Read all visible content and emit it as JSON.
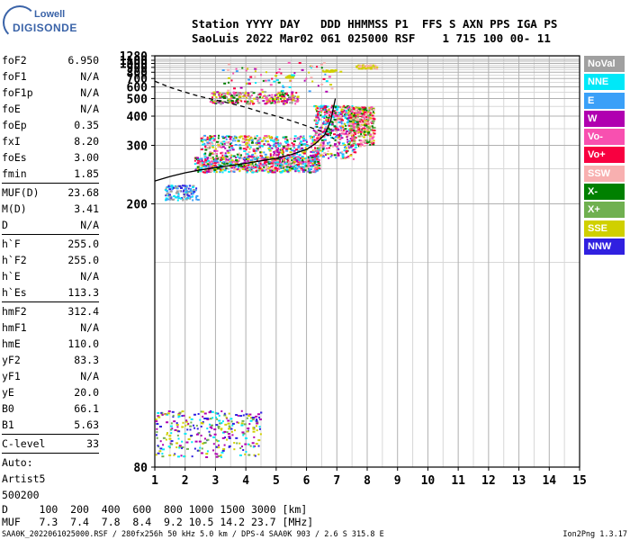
{
  "logo": {
    "line1": "Lowell",
    "line2": "DIGISONDE"
  },
  "header": {
    "row1": "Station YYYY DAY   DDD HHMMSS P1  FFS S AXN PPS IGA PS",
    "row2": "SaoLuis 2022 Mar02 061 025000 RSF    1 715 100 00- 11"
  },
  "params": [
    [
      {
        "k": "foF2",
        "v": "6.950"
      },
      {
        "k": "foF1",
        "v": "N/A"
      },
      {
        "k": "foF1p",
        "v": "N/A"
      },
      {
        "k": "foE",
        "v": "N/A"
      },
      {
        "k": "foEp",
        "v": "0.35"
      },
      {
        "k": "fxI",
        "v": "8.20"
      },
      {
        "k": "foEs",
        "v": "3.00"
      },
      {
        "k": "fmin",
        "v": "1.85"
      }
    ],
    [
      {
        "k": "MUF(D)",
        "v": "23.68"
      },
      {
        "k": "M(D)",
        "v": "3.41"
      },
      {
        "k": "D",
        "v": "N/A"
      }
    ],
    [
      {
        "k": "h`F",
        "v": "255.0"
      },
      {
        "k": "h`F2",
        "v": "255.0"
      },
      {
        "k": "h`E",
        "v": "N/A"
      },
      {
        "k": "h`Es",
        "v": "113.3"
      }
    ],
    [
      {
        "k": "hmF2",
        "v": "312.4"
      },
      {
        "k": "hmF1",
        "v": "N/A"
      },
      {
        "k": "hmE",
        "v": "110.0"
      },
      {
        "k": "yF2",
        "v": "83.3"
      },
      {
        "k": "yF1",
        "v": "N/A"
      },
      {
        "k": "yE",
        "v": "20.0"
      },
      {
        "k": "B0",
        "v": "66.1"
      },
      {
        "k": "B1",
        "v": "5.63"
      }
    ],
    [
      {
        "k": "C-level",
        "v": "33"
      }
    ],
    [
      {
        "k": "Auto:",
        "v": ""
      },
      {
        "k": "Artist5",
        "v": ""
      },
      {
        "k": "500200",
        "v": ""
      }
    ]
  ],
  "legend": [
    {
      "label": "NoVal",
      "color": "#a0a0a0"
    },
    {
      "label": "NNE",
      "color": "#00e8f8"
    },
    {
      "label": "E",
      "color": "#3aa0f8"
    },
    {
      "label": "W",
      "color": "#b000b0"
    },
    {
      "label": "Vo-",
      "color": "#f850b0"
    },
    {
      "label": "Vo+",
      "color": "#f80040"
    },
    {
      "label": "SSW",
      "color": "#f8b0b0"
    },
    {
      "label": "X-",
      "color": "#008000"
    },
    {
      "label": "X+",
      "color": "#70b050"
    },
    {
      "label": "SSE",
      "color": "#d0d000"
    },
    {
      "label": "NNW",
      "color": "#3020e0"
    }
  ],
  "dtable": {
    "row1": "D     100  200  400  600  800 1000 1500 3000 [km]",
    "row2": "MUF   7.3  7.4  7.8  8.4  9.2 10.5 14.2 23.7 [MHz]"
  },
  "footer": {
    "left": "SAA0K_2022061025000.RSF / 280fx256h 50 kHz 5.0 km / DPS-4 SAA0K 903 / 2.6 S 315.8 E",
    "right": "Ion2Png 1.3.17"
  },
  "chart_data": {
    "type": "scatter",
    "title": "",
    "xlabel": "",
    "ylabel": "",
    "xlim": [
      1,
      15
    ],
    "ylim": [
      80,
      1280
    ],
    "x_ticks": [
      1,
      2,
      3,
      4,
      5,
      6,
      7,
      8,
      9,
      10,
      11,
      12,
      13,
      14,
      15
    ],
    "y_ticks": [
      80,
      200,
      300,
      400,
      500,
      600,
      700,
      800,
      900,
      1000,
      1100,
      1280
    ],
    "y_scale": "inverse (virtual height)",
    "grid": true,
    "series": [
      {
        "name": "trace-F",
        "color": "#000000",
        "style": "solid",
        "x": [
          1.0,
          1.5,
          2.0,
          2.5,
          3.0,
          3.5,
          4.0,
          4.5,
          5.0,
          5.5,
          6.0,
          6.3,
          6.6,
          6.8,
          6.95
        ],
        "y": [
          230,
          237,
          243,
          248,
          252,
          256,
          260,
          265,
          270,
          278,
          290,
          305,
          330,
          380,
          500
        ]
      },
      {
        "name": "profile",
        "color": "#000000",
        "style": "dashed",
        "x": [
          1.0,
          1.5,
          2.0,
          2.5,
          3.0,
          3.5,
          4.0,
          4.5,
          5.0,
          5.5,
          6.0,
          6.5,
          6.9
        ],
        "y": [
          665,
          595,
          550,
          515,
          490,
          468,
          445,
          420,
          400,
          380,
          360,
          340,
          318
        ]
      }
    ]
  }
}
